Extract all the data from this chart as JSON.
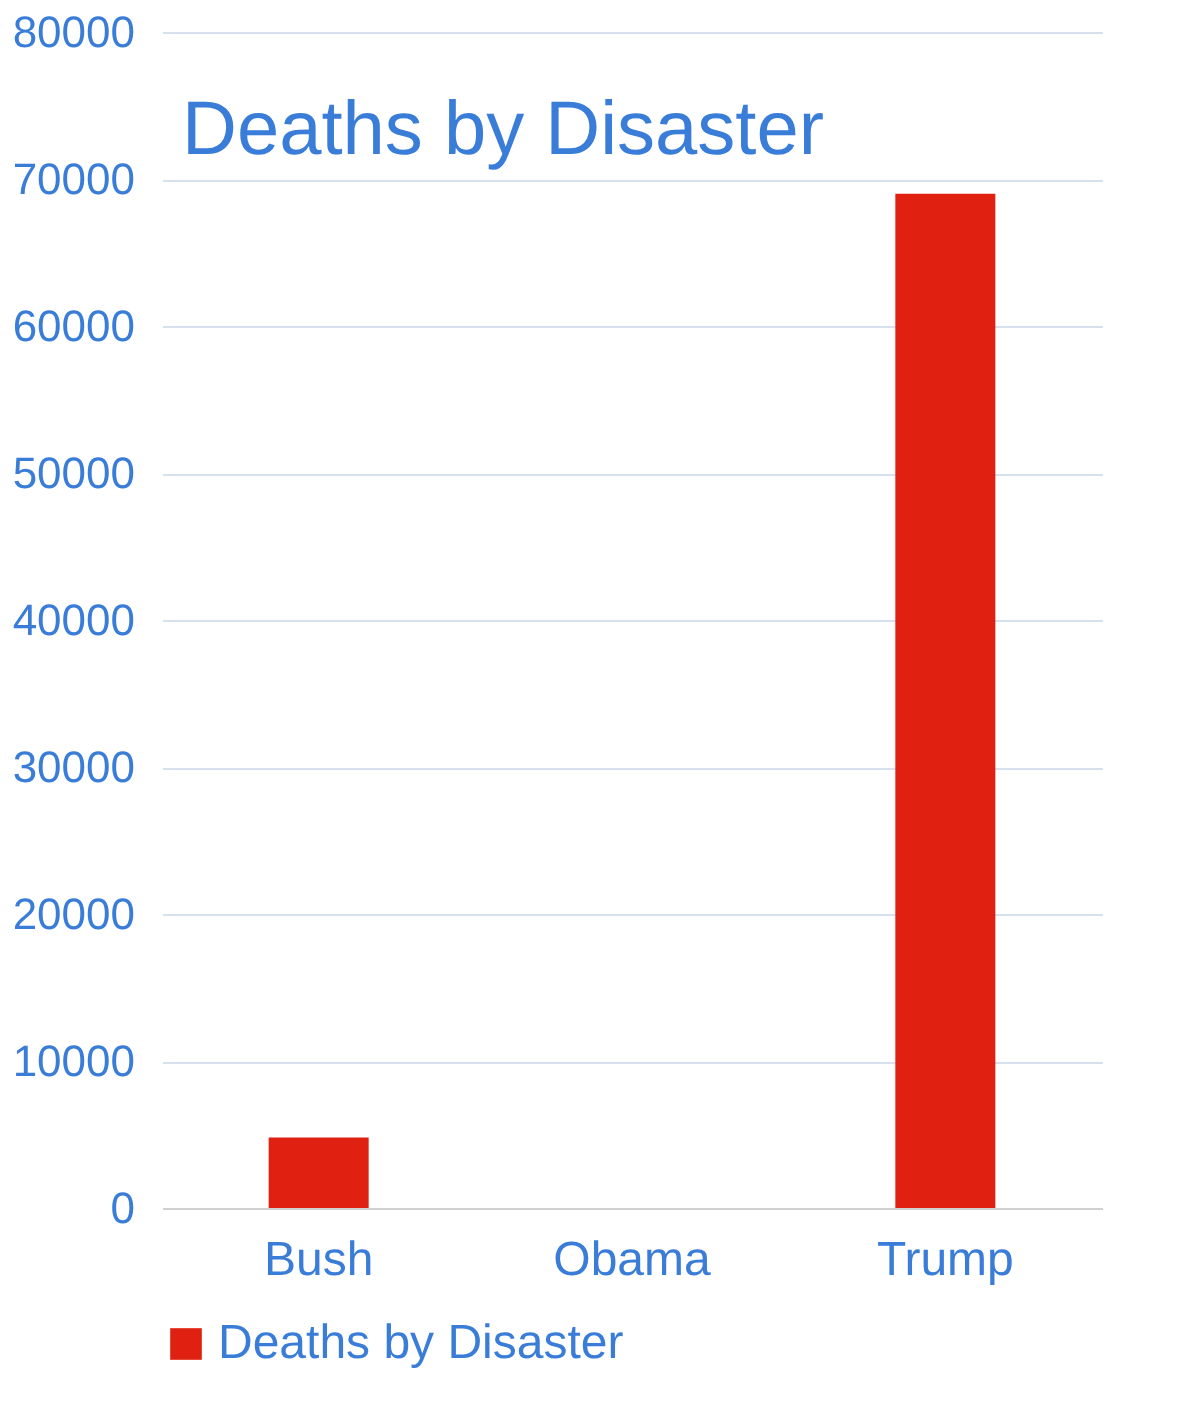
{
  "chart_data": {
    "type": "bar",
    "title": "Deaths by Disaster",
    "categories": [
      "Bush",
      "Obama",
      "Trump"
    ],
    "series": [
      {
        "name": "Deaths by Disaster",
        "color": "#e02010",
        "values": [
          4800,
          0,
          69000
        ]
      }
    ],
    "ylim": [
      0,
      80000
    ],
    "yticks": [
      0,
      10000,
      20000,
      30000,
      40000,
      50000,
      60000,
      70000,
      80000
    ],
    "grid": "y",
    "legend": "bottom"
  }
}
